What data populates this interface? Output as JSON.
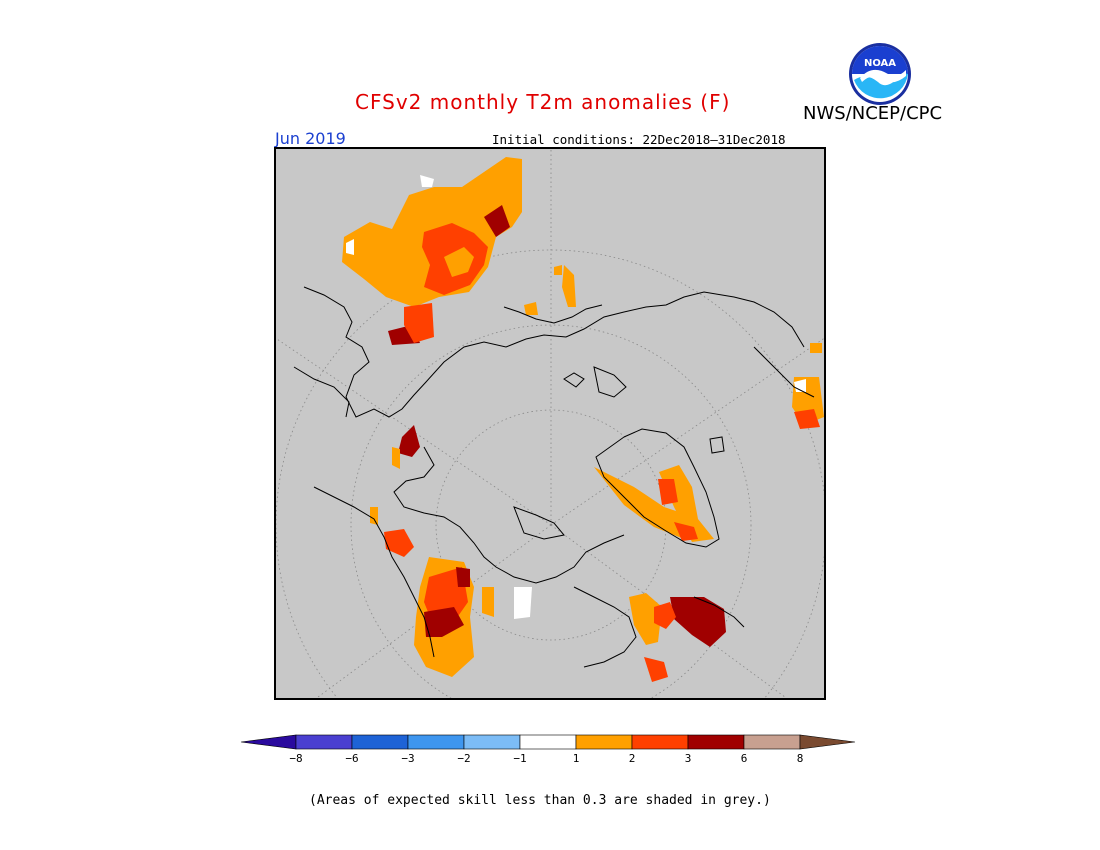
{
  "header": {
    "title": "CFSv2 monthly T2m anomalies (F)",
    "agency": "NWS/NCEP/CPC",
    "logo_text": "NOAA",
    "month": "Jun 2019",
    "initial_conditions": "Initial conditions: 22Dec2018–31Dec2018"
  },
  "map": {
    "projection": "north-polar-stereographic",
    "background_color": "#c8c8c8",
    "coastline_color": "#000000"
  },
  "legend": {
    "ticks": [
      "−8",
      "−6",
      "−3",
      "−2",
      "−1",
      "1",
      "2",
      "3",
      "6",
      "8"
    ],
    "bins": [
      {
        "range": "<−8",
        "color": "#2a0a9e"
      },
      {
        "range": "−8 to −6",
        "color": "#4a3fd0"
      },
      {
        "range": "−6 to −3",
        "color": "#1e63d6"
      },
      {
        "range": "−3 to −2",
        "color": "#3e96ef"
      },
      {
        "range": "−2 to −1",
        "color": "#7cbcf6"
      },
      {
        "range": "−1 to 1",
        "color": "#ffffff"
      },
      {
        "range": "1 to 2",
        "color": "#ffa000"
      },
      {
        "range": "2 to 3",
        "color": "#ff4000"
      },
      {
        "range": "3 to 6",
        "color": "#a00000"
      },
      {
        "range": "6 to 8",
        "color": "#c8a090"
      },
      {
        "range": ">8",
        "color": "#7a4a30"
      }
    ]
  },
  "footnote": "(Areas of expected skill less than 0.3 are shaded in grey.)"
}
